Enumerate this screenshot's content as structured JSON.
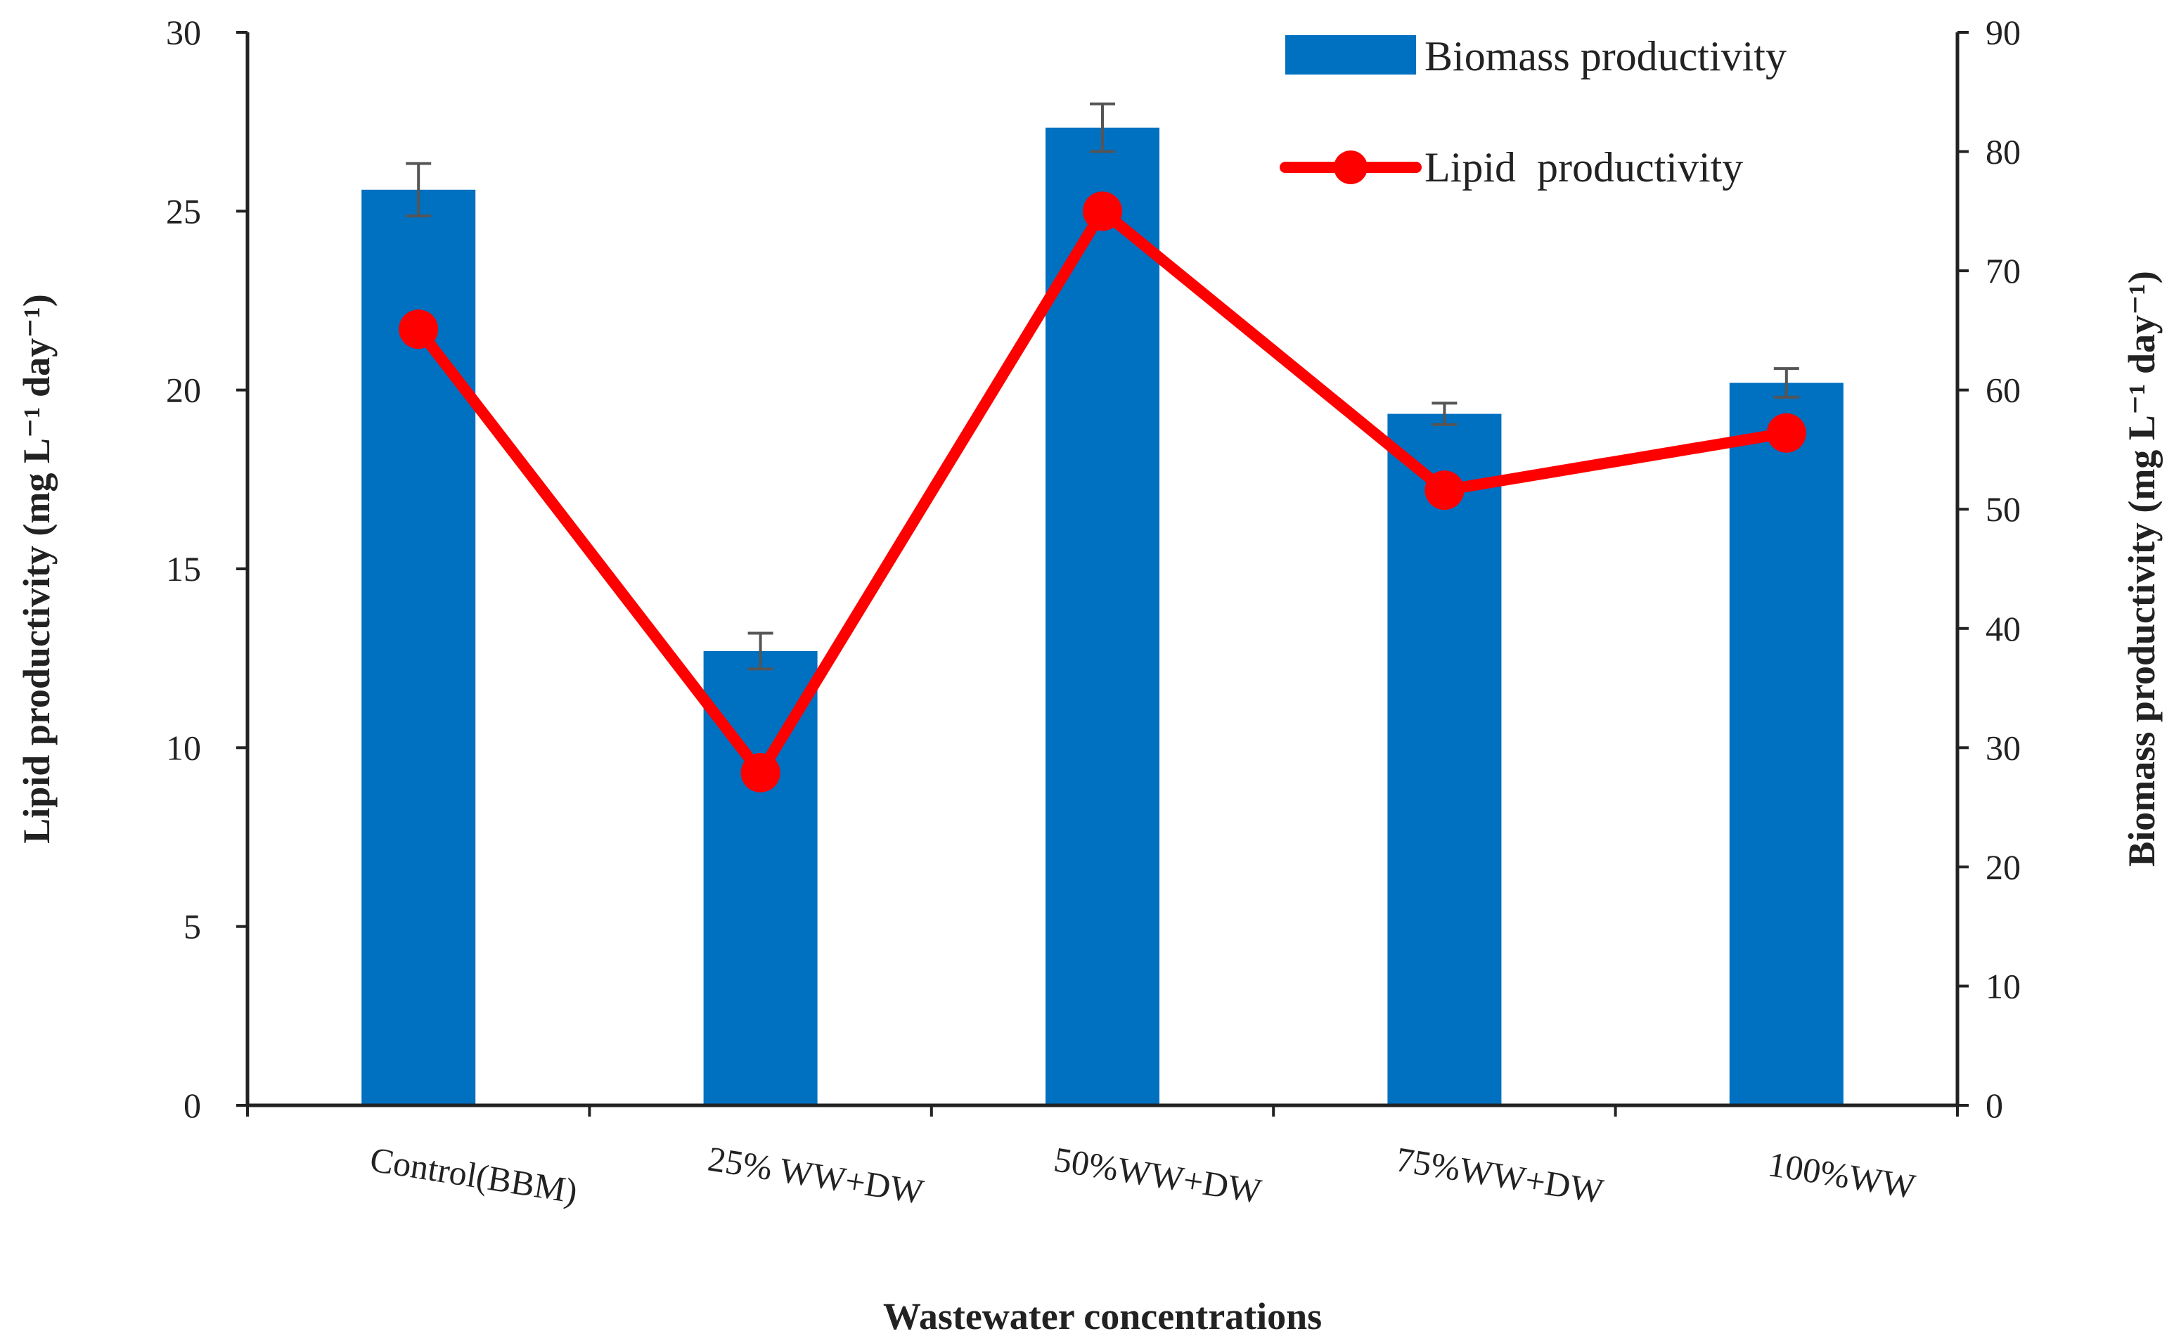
{
  "chart_data": {
    "type": "bar+line",
    "categories": [
      "Control(BBM)",
      "25% WW+DW",
      "50%WW+DW",
      "75%WW+DW",
      "100%WW"
    ],
    "xlabel": "Wastewater concentrations",
    "ylabel_left": "Lipid productivity (mg L⁻¹ day⁻¹)",
    "ylabel_right": "Biomass productivity (mg L⁻¹ day⁻¹)",
    "left_axis": {
      "min": 0,
      "max": 30,
      "ticks": [
        "0",
        "5",
        "10",
        "15",
        "20",
        "25",
        "30"
      ]
    },
    "right_axis": {
      "min": 0,
      "max": 90,
      "ticks": [
        "0",
        "10",
        "20",
        "30",
        "40",
        "50",
        "60",
        "70",
        "80",
        "90"
      ]
    },
    "series": [
      {
        "name": "Biomass productivity",
        "kind": "bar",
        "axis": "right",
        "color": "#0070C0",
        "values": [
          76.8,
          38.1,
          82.0,
          58.0,
          60.6
        ],
        "errors": [
          2.2,
          1.5,
          2.0,
          0.9,
          1.2
        ]
      },
      {
        "name": "Lipid  productivity",
        "kind": "line",
        "axis": "left",
        "color": "#FF0000",
        "values": [
          21.7,
          9.3,
          25.0,
          17.2,
          18.8
        ]
      }
    ],
    "legend_position": "top-right"
  }
}
